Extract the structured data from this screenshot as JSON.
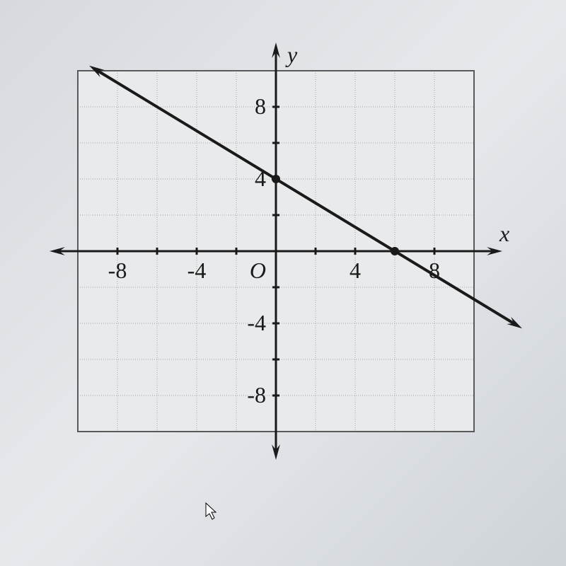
{
  "chart": {
    "type": "line",
    "background_color": "#e8eaec",
    "plot_border_color": "#5a5a5a",
    "grid_color": "#a8a8a8",
    "axis_color": "#1a1a1a",
    "axis_width": 3,
    "grid_width": 1,
    "border_width": 2,
    "xlim": [
      -10,
      10
    ],
    "ylim": [
      -10,
      10
    ],
    "grid_step": 2,
    "x_ticks": [
      -8,
      -4,
      4,
      8
    ],
    "y_ticks": [
      8,
      4,
      -4,
      -8
    ],
    "x_tick_labels": [
      "-8",
      "-4",
      "4",
      "8"
    ],
    "y_tick_labels": [
      "8",
      "4",
      "-4",
      "-8"
    ],
    "origin_label": "O",
    "x_axis_label": "x",
    "y_axis_label": "y",
    "tick_fontsize": 32,
    "tick_fontstyle": "italic",
    "tick_font_family": "serif",
    "tick_color": "#1a1a1a",
    "line": {
      "points": [
        [
          -9,
          10
        ],
        [
          12,
          -4
        ]
      ],
      "marked_points": [
        [
          0,
          4
        ],
        [
          6,
          0
        ]
      ],
      "color": "#1a1a1a",
      "width": 4,
      "marker_radius": 6,
      "arrows": true
    },
    "arrow_size": 14
  }
}
